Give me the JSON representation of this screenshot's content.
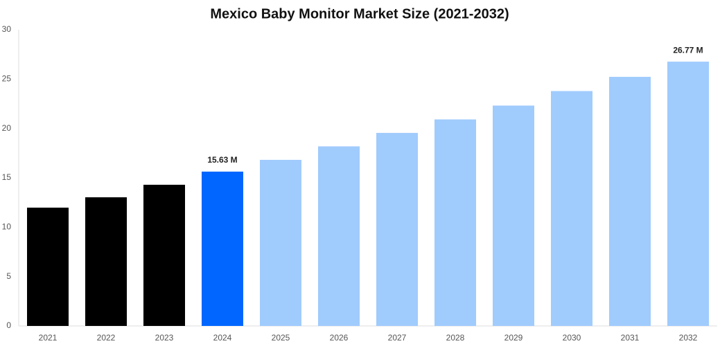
{
  "chart_data": {
    "type": "bar",
    "title": "Mexico Baby Monitor Market Size (2021-2032)",
    "categories": [
      "2021",
      "2022",
      "2023",
      "2024",
      "2025",
      "2026",
      "2027",
      "2028",
      "2029",
      "2030",
      "2031",
      "2032"
    ],
    "values": [
      11.98,
      13.03,
      14.3,
      15.63,
      16.82,
      18.19,
      19.55,
      20.92,
      22.32,
      23.79,
      25.23,
      26.77
    ],
    "value_labels": [
      null,
      null,
      null,
      "15.63 M",
      null,
      null,
      null,
      null,
      null,
      null,
      null,
      "26.77 M"
    ],
    "colors": [
      "#000000",
      "#000000",
      "#000000",
      "#0066ff",
      "#a0cbfd",
      "#a0cbfd",
      "#a0cbfd",
      "#a0cbfd",
      "#a0cbfd",
      "#a0cbfd",
      "#a0cbfd",
      "#a0cbfd"
    ],
    "ylim": [
      0,
      30
    ],
    "yticks": [
      0,
      5,
      10,
      15,
      20,
      25,
      30
    ],
    "grid": false
  }
}
